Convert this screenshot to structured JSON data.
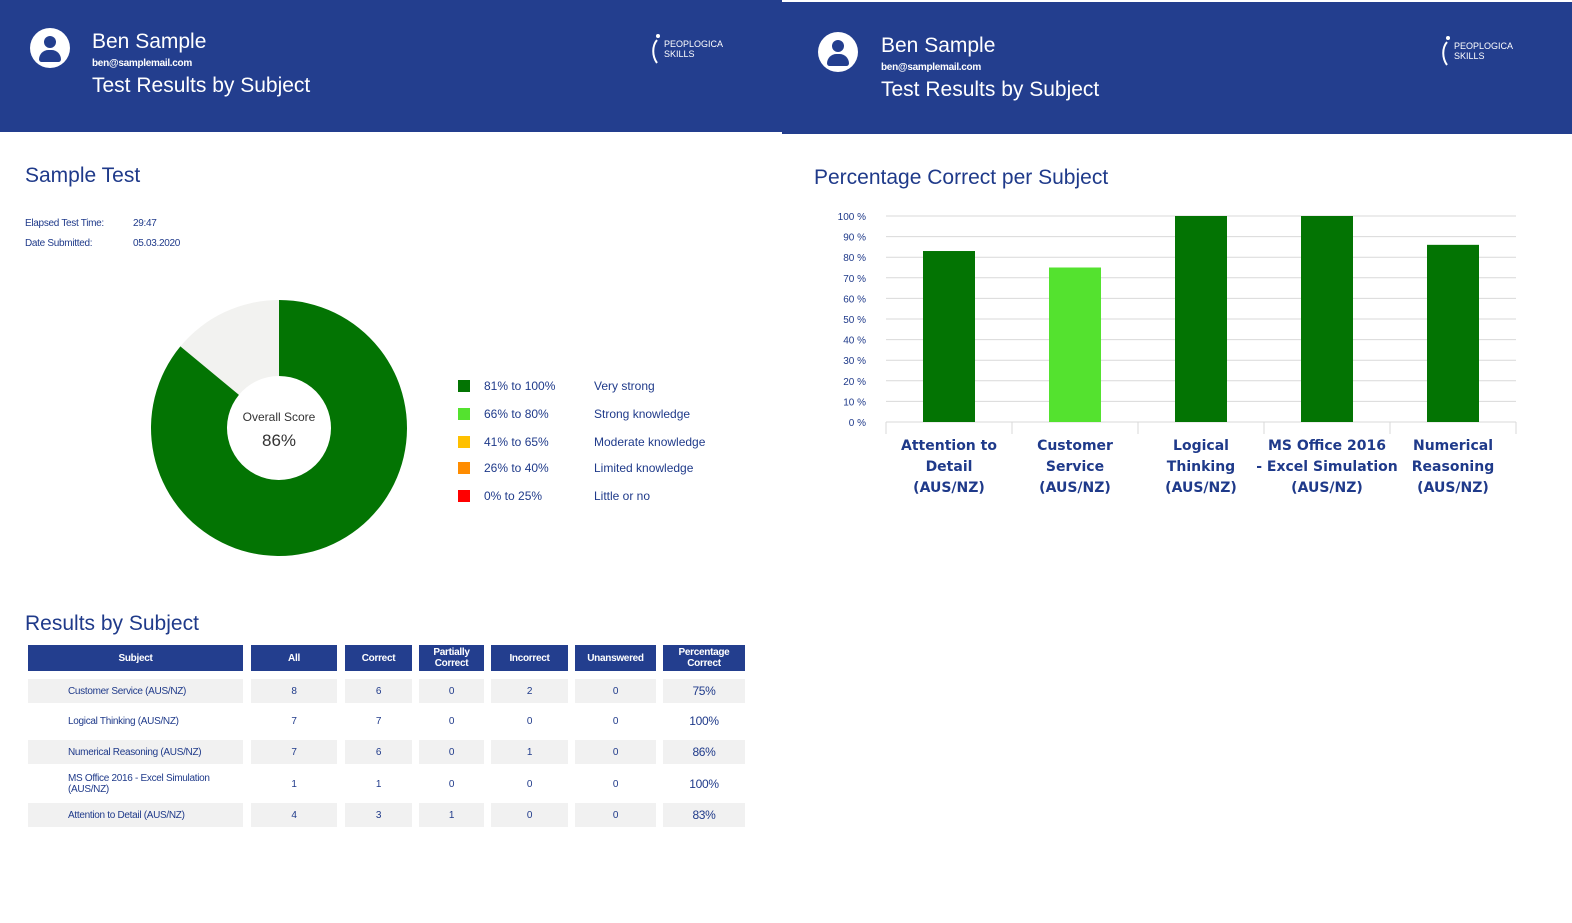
{
  "header": {
    "name": "Ben Sample",
    "email": "ben@samplemail.com",
    "title": "Test Results by Subject",
    "logo_text": [
      "PEOPLOGICA",
      "SKILLS"
    ],
    "color": "#233e8e"
  },
  "left": {
    "test_title": "Sample Test",
    "elapsed_label": "Elapsed Test Time:",
    "elapsed_value": "29:47",
    "date_label": "Date Submitted:",
    "date_value": "05.03.2020",
    "donut": {
      "center_label": "Overall Score",
      "center_value": "86%",
      "score": 86,
      "fill_color": "#037403",
      "rest_color": "#f2f2f0"
    },
    "legend": [
      {
        "range": "81% to 100%",
        "desc": "Very strong",
        "color": "#037403"
      },
      {
        "range": "66% to 80%",
        "desc": "Strong knowledge",
        "color": "#54e22f"
      },
      {
        "range": "41% to 65%",
        "desc": "Moderate knowledge",
        "color": "#ffc000"
      },
      {
        "range": "26% to 40%",
        "desc": "Limited knowledge",
        "color": "#ff8c00"
      },
      {
        "range": "0% to 25%",
        "desc": "Little or no",
        "color": "#ff0000"
      }
    ],
    "results_title": "Results by Subject",
    "table": {
      "headers": [
        "Subject",
        "All",
        "Correct",
        "Partially Correct",
        "Incorrect",
        "Unanswered",
        "Percentage Correct"
      ],
      "rows": [
        [
          "Customer Service (AUS/NZ)",
          "8",
          "6",
          "0",
          "2",
          "0",
          "75%"
        ],
        [
          "Logical Thinking (AUS/NZ)",
          "7",
          "7",
          "0",
          "0",
          "0",
          "100%"
        ],
        [
          "Numerical Reasoning (AUS/NZ)",
          "7",
          "6",
          "0",
          "1",
          "0",
          "86%"
        ],
        [
          "MS Office 2016 - Excel Simulation (AUS/NZ)",
          "1",
          "1",
          "0",
          "0",
          "0",
          "100%"
        ],
        [
          "Attention to Detail (AUS/NZ)",
          "4",
          "3",
          "1",
          "0",
          "0",
          "83%"
        ]
      ]
    }
  },
  "right": {
    "chart_title": "Percentage Correct per Subject"
  },
  "chart_data": {
    "type": "bar",
    "title": "Percentage Correct per Subject",
    "categories": [
      [
        "Attention to",
        "Detail",
        "(AUS/NZ)"
      ],
      [
        "Customer",
        "Service",
        "(AUS/NZ)"
      ],
      [
        "Logical",
        "Thinking",
        "(AUS/NZ)"
      ],
      [
        "MS Office 2016",
        "- Excel Simulation",
        "(AUS/NZ)"
      ],
      [
        "Numerical",
        "Reasoning",
        "(AUS/NZ)"
      ]
    ],
    "values": [
      83,
      75,
      100,
      100,
      86
    ],
    "bar_colors": [
      "#037403",
      "#54e22f",
      "#037403",
      "#037403",
      "#037403"
    ],
    "yticks": [
      "0 %",
      "10 %",
      "20 %",
      "30 %",
      "40 %",
      "50 %",
      "60 %",
      "70 %",
      "80 %",
      "90 %",
      "100 %"
    ],
    "ylim": [
      0,
      100
    ],
    "grid": true
  }
}
